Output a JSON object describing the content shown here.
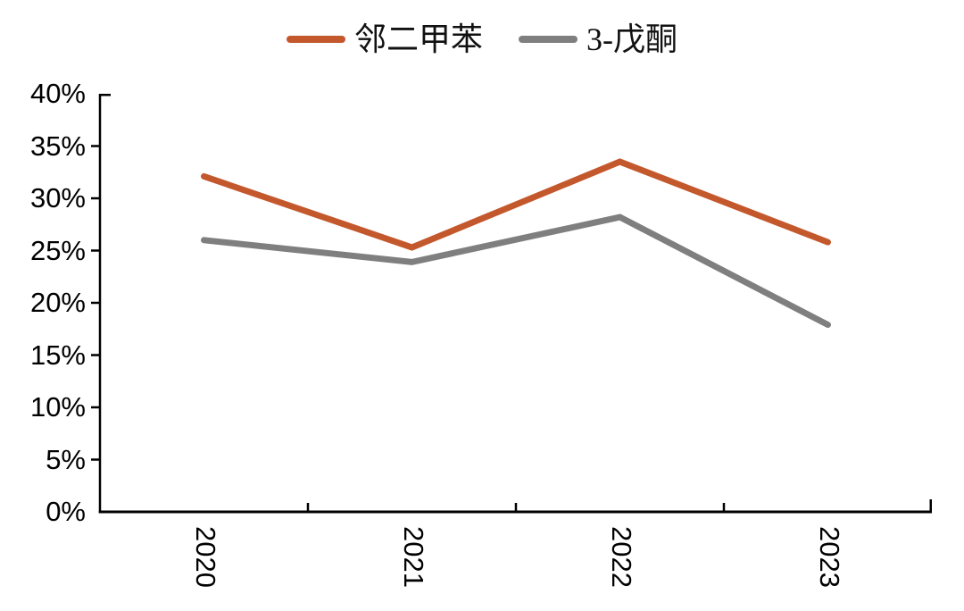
{
  "chart_data": {
    "type": "line",
    "title": "",
    "categories": [
      "2020",
      "2021",
      "2022",
      "2023"
    ],
    "series": [
      {
        "name": "邻二甲苯",
        "color": "#C4582D",
        "values": [
          32.1,
          25.3,
          33.5,
          25.8
        ]
      },
      {
        "name": "3-戊酮",
        "color": "#7F7F7F",
        "values": [
          26.0,
          23.9,
          28.2,
          17.9
        ]
      }
    ],
    "ylim": [
      0,
      40
    ],
    "ytick_step": 5,
    "ytick_labels": [
      "0%",
      "5%",
      "10%",
      "15%",
      "20%",
      "25%",
      "30%",
      "35%",
      "40%"
    ],
    "xlabel": "",
    "ylabel": "",
    "grid": false,
    "legend_position": "top-center",
    "x_label_rotation_deg": 90,
    "axis_color": "#000000",
    "background_color": "#FFFFFF"
  }
}
